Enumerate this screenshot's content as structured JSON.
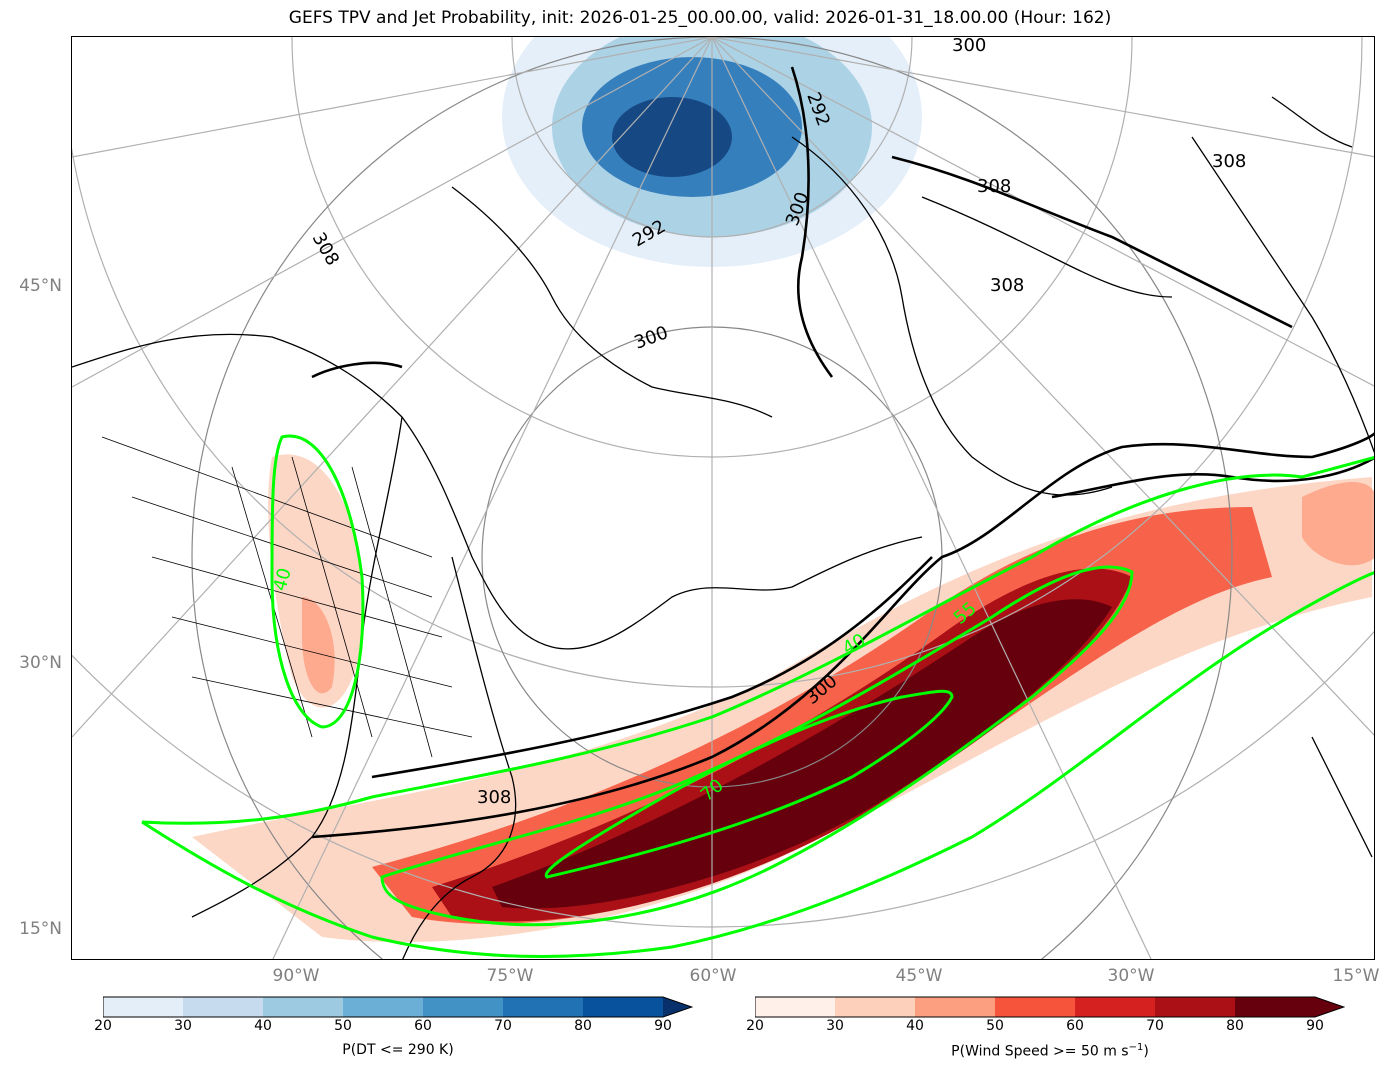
{
  "title": "GEFS TPV and Jet Probability, init: 2026-01-25_00.00.00, valid: 2026-01-31_18.00.00 (Hour: 162)",
  "latitude_labels": [
    "45°N",
    "30°N",
    "15°N"
  ],
  "longitude_labels": [
    "90°W",
    "75°W",
    "60°W",
    "45°W",
    "30°W",
    "15°W"
  ],
  "theta_contour_labels": [
    "300",
    "292",
    "308",
    "292",
    "300",
    "308",
    "308",
    "300",
    "300",
    "308",
    "308"
  ],
  "wind_contour_labels": [
    "40",
    "40",
    "55",
    "70"
  ],
  "colorbar_tpv": {
    "label": "P(DT <= 290 K)",
    "ticks": [
      "20",
      "30",
      "40",
      "50",
      "60",
      "70",
      "80",
      "90"
    ],
    "colors": [
      "#e3eef8",
      "#c7dbef",
      "#9ecae1",
      "#6baed6",
      "#4292c6",
      "#2171b5",
      "#08519c"
    ],
    "extend_color": "#08306b"
  },
  "colorbar_jet": {
    "label_main": "P(Wind Speed >= 50 m s",
    "label_sup": "−1",
    "label_end": ")",
    "ticks": [
      "20",
      "30",
      "40",
      "50",
      "60",
      "70",
      "80",
      "90"
    ],
    "colors": [
      "#fff0ea",
      "#fdd0bc",
      "#fc9f81",
      "#f6553c",
      "#d52221",
      "#aa1016",
      "#67000d"
    ],
    "extend_color": "#67000d"
  },
  "colors": {
    "coastline": "#000000",
    "graticule": "#b0b0b0",
    "jet_contour": "#00ff00",
    "theta_contour": "#000000"
  }
}
